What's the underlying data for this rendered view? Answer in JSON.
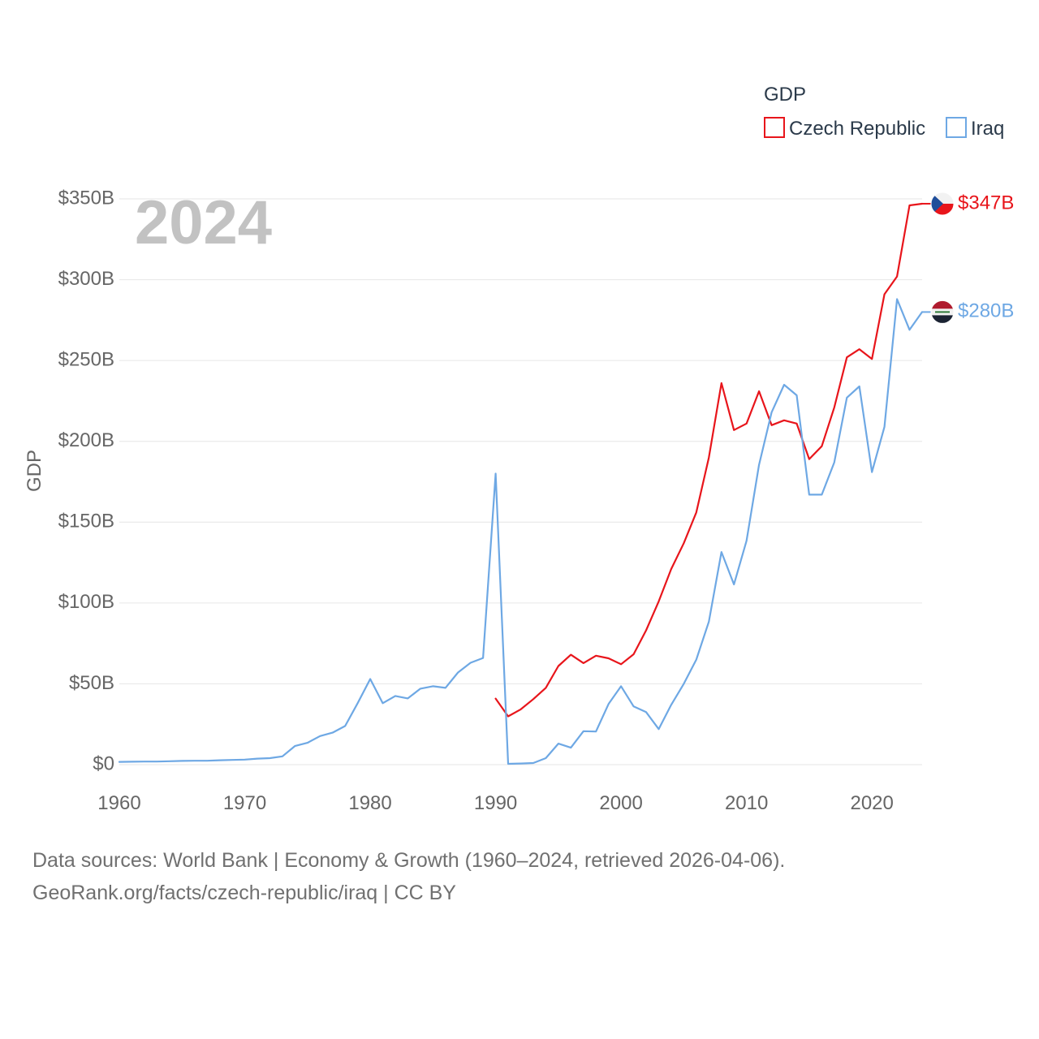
{
  "chart_data": {
    "type": "line",
    "title": "",
    "year_label": "2024",
    "ylabel": "GDP",
    "xlabel": "",
    "xlim": [
      1960,
      2024
    ],
    "ylim": [
      0,
      350
    ],
    "x_ticks": [
      "1960",
      "1970",
      "1980",
      "1990",
      "2000",
      "2010",
      "2020"
    ],
    "y_ticks": [
      {
        "value": 0,
        "label": "$0"
      },
      {
        "value": 50,
        "label": "$50B"
      },
      {
        "value": 100,
        "label": "$100B"
      },
      {
        "value": 150,
        "label": "$150B"
      },
      {
        "value": 200,
        "label": "$200B"
      },
      {
        "value": 250,
        "label": "$250B"
      },
      {
        "value": 300,
        "label": "$300B"
      },
      {
        "value": 350,
        "label": "$350B"
      }
    ],
    "legend": {
      "title": "GDP",
      "position": "top-right"
    },
    "units": "USD billions",
    "series": [
      {
        "name": "Czech Republic",
        "color": "#e8151b",
        "end_label": "$347B",
        "flag": "czech-flag",
        "x": [
          1990,
          1991,
          1992,
          1993,
          1994,
          1995,
          1996,
          1997,
          1998,
          1999,
          2000,
          2001,
          2002,
          2003,
          2004,
          2005,
          2006,
          2007,
          2008,
          2009,
          2010,
          2011,
          2012,
          2013,
          2014,
          2015,
          2016,
          2017,
          2018,
          2019,
          2020,
          2021,
          2022,
          2023,
          2024
        ],
        "values": [
          40.9,
          29.9,
          34.2,
          40.5,
          47.5,
          61,
          68,
          62.8,
          67.4,
          65.8,
          62.1,
          68.3,
          83.1,
          101,
          121,
          137,
          156,
          190,
          236,
          207,
          211,
          231,
          210,
          213,
          211,
          189,
          197,
          221,
          252,
          257,
          251,
          291,
          302,
          346,
          347
        ]
      },
      {
        "name": "Iraq",
        "color": "#6ea8e4",
        "end_label": "$280B",
        "flag": "iraq-flag",
        "x": [
          1960,
          1961,
          1962,
          1963,
          1964,
          1965,
          1966,
          1967,
          1968,
          1969,
          1970,
          1971,
          1972,
          1973,
          1974,
          1975,
          1976,
          1977,
          1978,
          1979,
          1980,
          1981,
          1982,
          1983,
          1984,
          1985,
          1986,
          1987,
          1988,
          1989,
          1990,
          1991,
          1992,
          1993,
          1994,
          1995,
          1996,
          1997,
          1998,
          1999,
          2000,
          2001,
          2002,
          2003,
          2004,
          2005,
          2006,
          2007,
          2008,
          2009,
          2010,
          2011,
          2012,
          2013,
          2014,
          2015,
          2016,
          2017,
          2018,
          2019,
          2020,
          2021,
          2022,
          2023,
          2024
        ],
        "values": [
          1.7,
          1.8,
          1.9,
          1.9,
          2.1,
          2.3,
          2.4,
          2.4,
          2.7,
          2.9,
          3.1,
          3.7,
          4.0,
          5.1,
          11.5,
          13.5,
          17.7,
          19.8,
          23.9,
          38,
          53,
          38,
          42.5,
          41,
          47,
          48.5,
          47.5,
          57,
          63,
          66,
          180,
          0.5,
          0.7,
          1.0,
          4.0,
          13,
          10.5,
          20.7,
          20.5,
          37.5,
          48.5,
          36,
          32.5,
          22,
          37,
          50,
          65,
          88.5,
          131.5,
          111.5,
          138.5,
          185.5,
          218,
          235,
          228.5,
          167,
          167,
          187,
          227,
          234,
          181,
          209,
          288,
          269,
          280
        ]
      }
    ]
  },
  "source": {
    "line1": "Data sources: World Bank | Economy & Growth (1960–2024, retrieved 2026-04-06).",
    "line2": "GeoRank.org/facts/czech-republic/iraq | CC BY"
  }
}
